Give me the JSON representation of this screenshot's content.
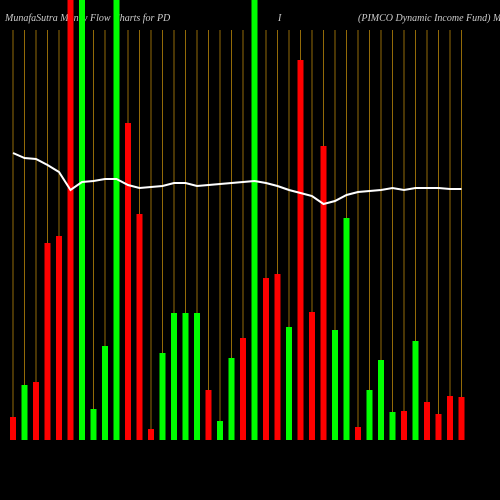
{
  "chart_data": {
    "type": "bar",
    "title_parts": [
      "MunafaSutra  Money Flow  Charts for PD",
      "I",
      "(PIMCO Dynamic Income   Fund) Manag"
    ],
    "categories": [
      null,
      null,
      null,
      null,
      null,
      null,
      null,
      null,
      null,
      null,
      null,
      null,
      null,
      null,
      null,
      null,
      null,
      null,
      null,
      null,
      null,
      null,
      null,
      null,
      null,
      null,
      null,
      null,
      null,
      null,
      null,
      null,
      null,
      null,
      null,
      null,
      null,
      null,
      null,
      null
    ],
    "values": [
      23,
      55,
      58,
      197,
      204,
      440,
      440,
      31,
      94,
      440,
      317,
      226,
      11,
      87,
      127,
      127,
      127,
      50,
      19,
      82,
      102,
      440,
      162,
      166,
      113,
      380,
      128,
      294,
      110,
      222,
      13,
      50,
      80,
      28,
      29,
      99,
      38,
      26,
      44,
      43
    ],
    "colors": [
      "#ff0000",
      "#00ff00",
      "#ff0000",
      "#ff0000",
      "#ff0000",
      "#ff0000",
      "#00ff00",
      "#00ff00",
      "#00ff00",
      "#00ff00",
      "#ff0000",
      "#ff0000",
      "#ff0000",
      "#00ff00",
      "#00ff00",
      "#00ff00",
      "#00ff00",
      "#ff0000",
      "#00ff00",
      "#00ff00",
      "#ff0000",
      "#00ff00",
      "#ff0000",
      "#ff0000",
      "#00ff00",
      "#ff0000",
      "#ff0000",
      "#ff0000",
      "#00ff00",
      "#00ff00",
      "#ff0000",
      "#00ff00",
      "#00ff00",
      "#00ff00",
      "#ff0000",
      "#00ff00",
      "#ff0000",
      "#ff0000",
      "#ff0000",
      "#ff0000"
    ],
    "line": {
      "color": "#ffffff",
      "values": [
        287,
        282,
        281,
        275,
        268,
        250,
        258,
        259,
        261,
        261,
        255,
        252,
        253,
        254,
        257,
        257,
        254,
        255,
        256,
        257,
        258,
        259,
        257,
        254,
        250,
        247,
        244,
        236,
        239,
        245,
        248,
        249,
        250,
        252,
        250,
        252,
        252,
        252,
        251,
        251
      ]
    },
    "ylim": [
      0,
      440
    ],
    "grid_color": "#b8860b"
  }
}
